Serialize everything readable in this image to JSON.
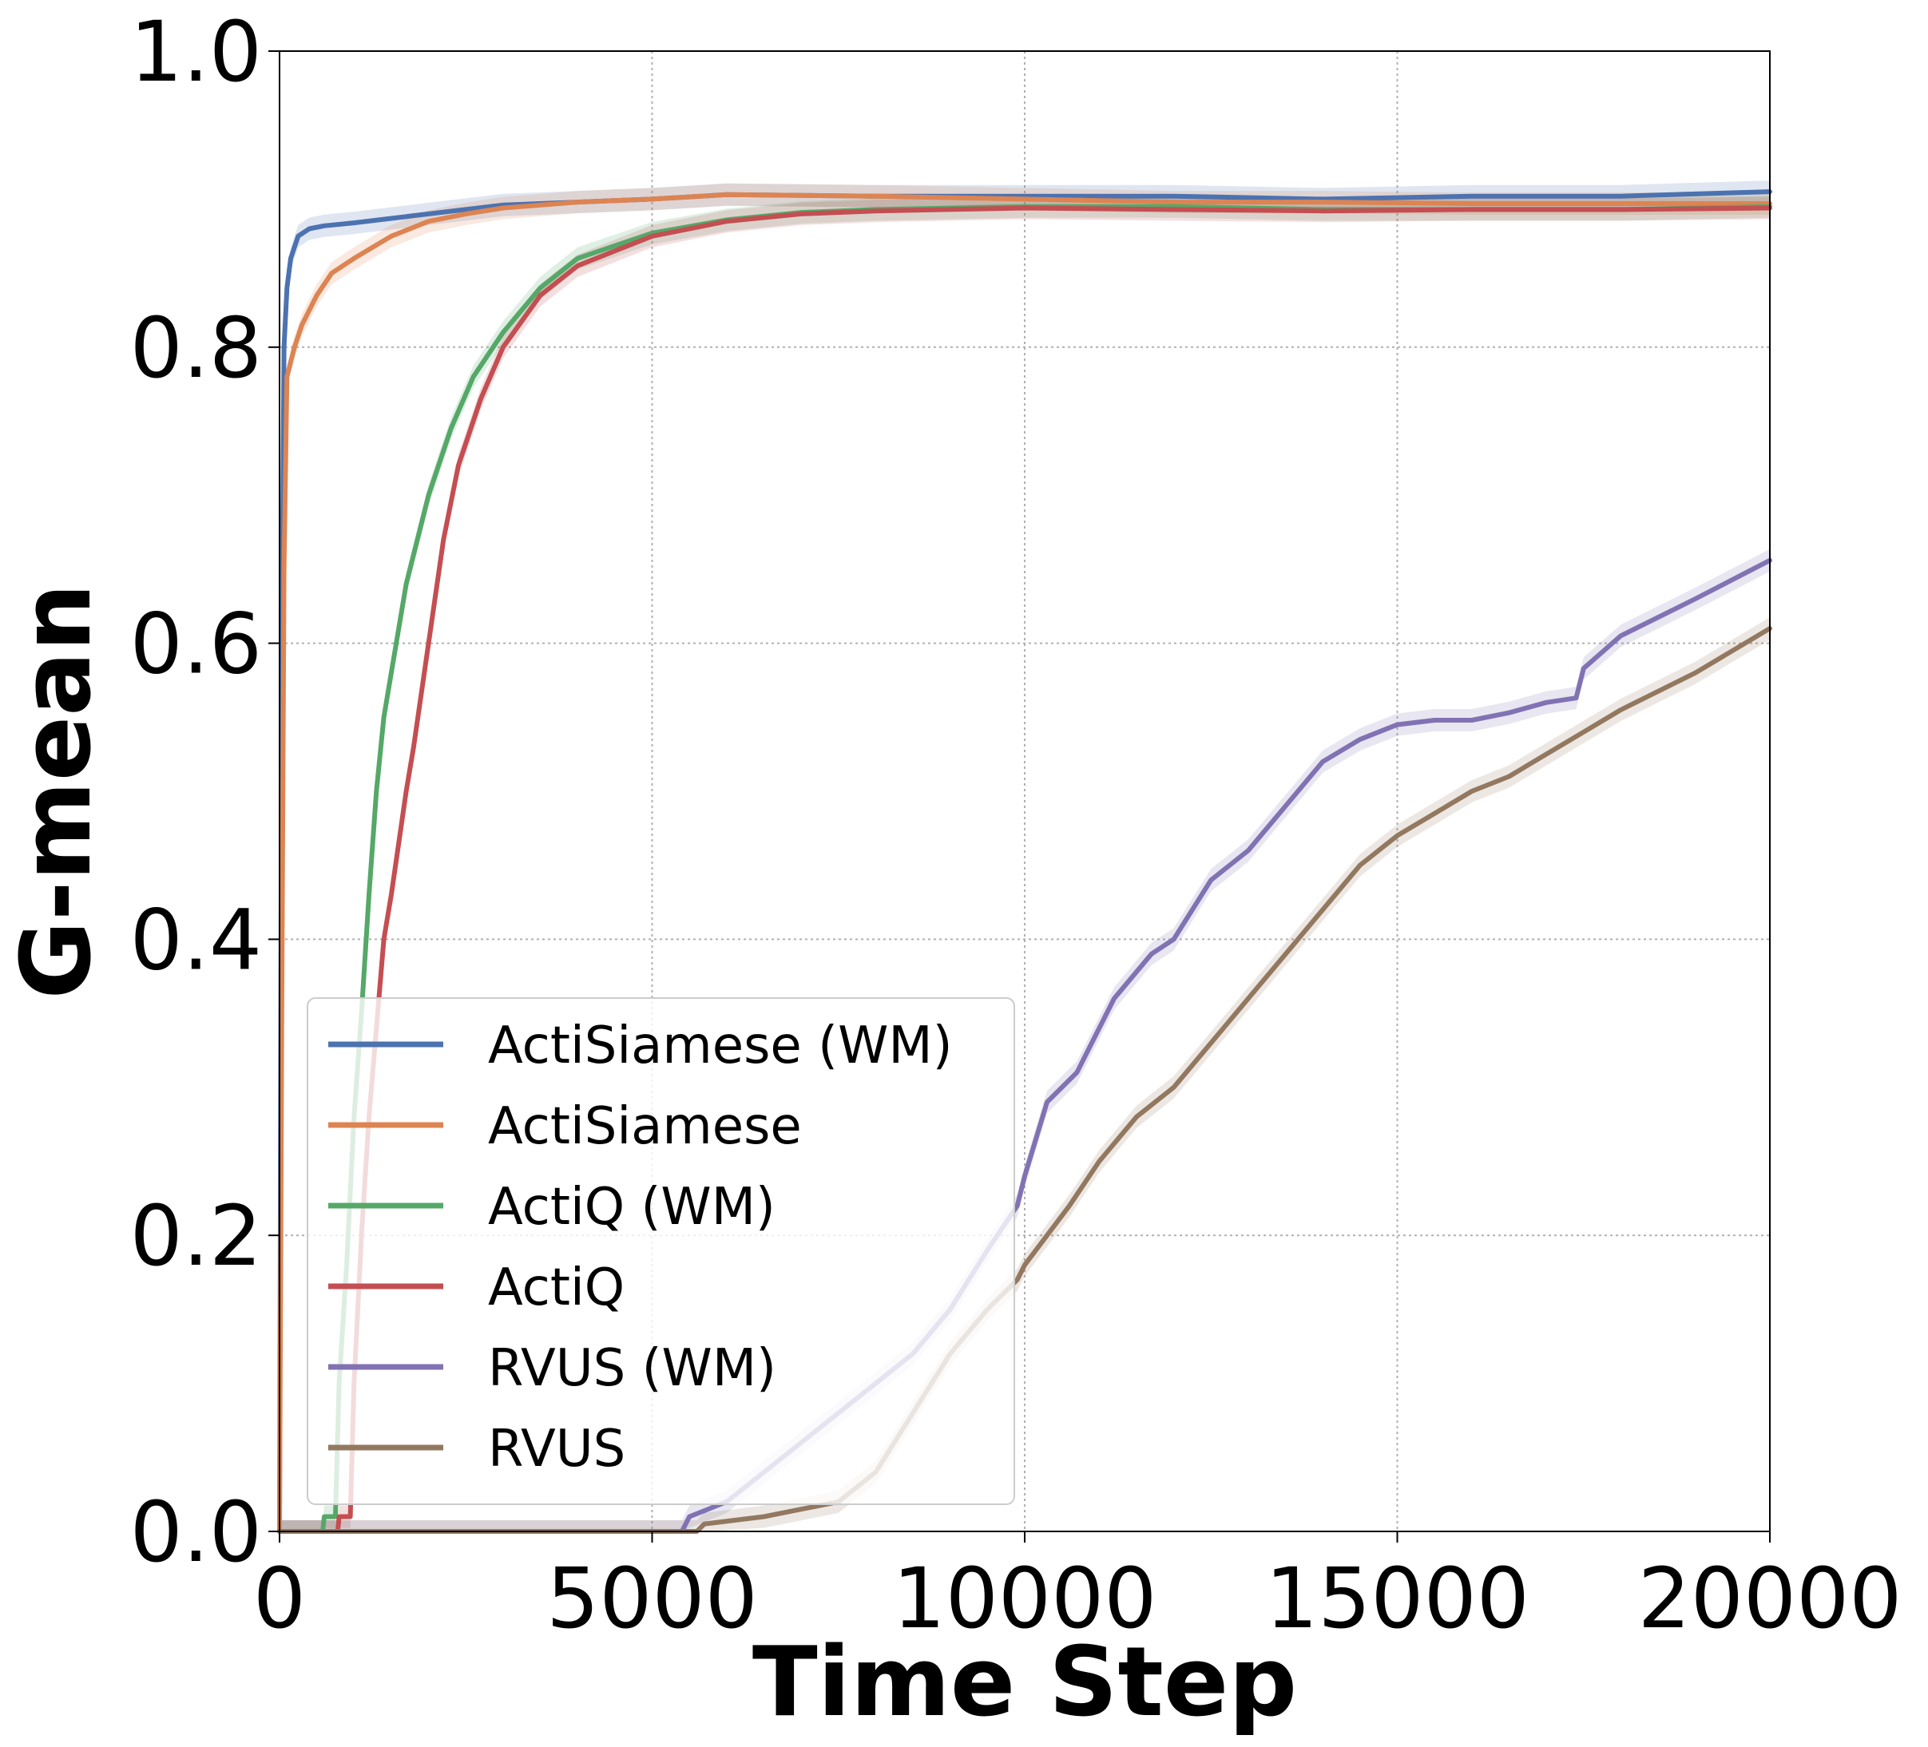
{
  "chart_data": {
    "type": "line",
    "xlabel": "Time Step",
    "ylabel": "G-mean",
    "xlim": [
      0,
      20000
    ],
    "ylim": [
      0,
      1.0
    ],
    "xticks": [
      0,
      5000,
      10000,
      15000,
      20000
    ],
    "xtick_labels": [
      "0",
      "5000",
      "10000",
      "15000",
      "20000"
    ],
    "yticks": [
      0,
      0.2,
      0.4,
      0.6,
      0.8,
      1.0
    ],
    "ytick_labels": [
      "0.0",
      "0.2",
      "0.4",
      "0.6",
      "0.8",
      "1.0"
    ],
    "grid": true,
    "legend_position": "lower-left",
    "series": [
      {
        "name": "ActiSiamese (WM)",
        "color": "#4c72b0",
        "x": [
          0,
          30,
          60,
          100,
          150,
          250,
          400,
          600,
          1000,
          1500,
          2000,
          3000,
          4000,
          5000,
          6000,
          8000,
          10000,
          12000,
          14000,
          16000,
          18000,
          20000
        ],
        "y": [
          0,
          0.6,
          0.8,
          0.84,
          0.86,
          0.875,
          0.88,
          0.882,
          0.884,
          0.887,
          0.89,
          0.896,
          0.898,
          0.9,
          0.903,
          0.902,
          0.902,
          0.902,
          0.9,
          0.902,
          0.902,
          0.905
        ]
      },
      {
        "name": "ActiSiamese",
        "color": "#dd8452",
        "x": [
          0,
          30,
          60,
          100,
          200,
          300,
          500,
          700,
          1000,
          1500,
          2000,
          2500,
          3000,
          4000,
          5000,
          6000,
          8000,
          10000,
          12000,
          14000,
          16000,
          18000,
          20000
        ],
        "y": [
          0,
          0.35,
          0.65,
          0.78,
          0.8,
          0.815,
          0.835,
          0.85,
          0.86,
          0.875,
          0.885,
          0.89,
          0.894,
          0.898,
          0.9,
          0.903,
          0.902,
          0.9,
          0.898,
          0.898,
          0.897,
          0.897,
          0.897
        ]
      },
      {
        "name": "ActiQ (WM)",
        "color": "#55a868",
        "x": [
          0,
          580,
          600,
          750,
          800,
          900,
          1000,
          1100,
          1200,
          1300,
          1400,
          1500,
          1700,
          2000,
          2300,
          2600,
          3000,
          3500,
          4000,
          5000,
          6000,
          7000,
          8000,
          10000,
          12000,
          14000,
          16000,
          18000,
          20000
        ],
        "y": [
          0,
          0,
          0.01,
          0.01,
          0.1,
          0.18,
          0.28,
          0.35,
          0.43,
          0.5,
          0.55,
          0.58,
          0.64,
          0.7,
          0.745,
          0.78,
          0.81,
          0.84,
          0.86,
          0.877,
          0.886,
          0.891,
          0.893,
          0.895,
          0.895,
          0.893,
          0.893,
          0.893,
          0.895
        ]
      },
      {
        "name": "ActiQ",
        "color": "#c44e52",
        "x": [
          0,
          780,
          800,
          950,
          1000,
          1100,
          1200,
          1300,
          1400,
          1500,
          1700,
          1800,
          2000,
          2200,
          2400,
          2700,
          3000,
          3500,
          4000,
          5000,
          6000,
          7000,
          8000,
          10000,
          12000,
          14000,
          16000,
          18000,
          20000
        ],
        "y": [
          0,
          0,
          0.01,
          0.01,
          0.1,
          0.2,
          0.28,
          0.34,
          0.4,
          0.43,
          0.5,
          0.53,
          0.6,
          0.67,
          0.72,
          0.765,
          0.8,
          0.835,
          0.855,
          0.875,
          0.885,
          0.89,
          0.892,
          0.894,
          0.893,
          0.892,
          0.893,
          0.893,
          0.894
        ]
      },
      {
        "name": "RVUS (WM)",
        "color": "#8172b3",
        "x": [
          0,
          5400,
          5500,
          6000,
          6500,
          7000,
          7500,
          8000,
          8500,
          9000,
          9500,
          9900,
          10000,
          10300,
          10700,
          11200,
          11700,
          12000,
          12500,
          13000,
          13500,
          14000,
          14500,
          15000,
          15500,
          16000,
          16500,
          17000,
          17400,
          17500,
          18000,
          19000,
          20000
        ],
        "y": [
          0,
          0,
          0.01,
          0.02,
          0.04,
          0.06,
          0.08,
          0.1,
          0.12,
          0.15,
          0.19,
          0.22,
          0.24,
          0.29,
          0.31,
          0.36,
          0.39,
          0.4,
          0.44,
          0.46,
          0.49,
          0.52,
          0.535,
          0.545,
          0.548,
          0.548,
          0.553,
          0.56,
          0.563,
          0.583,
          0.605,
          0.63,
          0.656
        ]
      },
      {
        "name": "RVUS",
        "color": "#937860",
        "x": [
          0,
          5600,
          5700,
          6500,
          7000,
          7500,
          8000,
          8500,
          9000,
          9500,
          9900,
          10000,
          10300,
          10600,
          11000,
          11500,
          12000,
          12500,
          13000,
          13500,
          14000,
          14500,
          15000,
          15500,
          16000,
          16500,
          17000,
          17500,
          18000,
          19000,
          20000
        ],
        "y": [
          0,
          0,
          0.005,
          0.01,
          0.015,
          0.02,
          0.04,
          0.08,
          0.12,
          0.15,
          0.17,
          0.18,
          0.2,
          0.22,
          0.25,
          0.28,
          0.3,
          0.33,
          0.36,
          0.39,
          0.42,
          0.45,
          0.47,
          0.485,
          0.5,
          0.51,
          0.525,
          0.54,
          0.555,
          0.58,
          0.61
        ]
      }
    ]
  }
}
